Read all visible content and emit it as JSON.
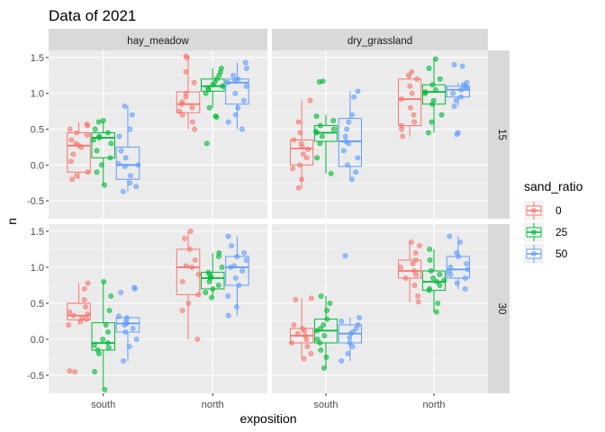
{
  "chart_data": {
    "type": "boxplot",
    "title": "Data of 2021",
    "xlabel": "exposition",
    "ylabel": "n",
    "ylim": [
      -0.75,
      1.6
    ],
    "yticks": [
      -0.5,
      0.0,
      0.5,
      1.0,
      1.5
    ],
    "ytick_labels": [
      "-0.5",
      "0.0",
      "0.5",
      "1.0",
      "1.5"
    ],
    "categories": [
      "south",
      "north"
    ],
    "facet_cols": [
      "hay_meadow",
      "dry_grassland"
    ],
    "facet_rows": [
      "15",
      "30"
    ],
    "legend": {
      "title": "sand_ratio",
      "position": "right",
      "entries": [
        {
          "label": "0",
          "color": "#F8766D"
        },
        {
          "label": "25",
          "color": "#00BA38"
        },
        {
          "label": "50",
          "color": "#619CFF"
        }
      ]
    },
    "grid": true,
    "panels": [
      {
        "col": "hay_meadow",
        "row": "15",
        "groups": [
          {
            "category": "south",
            "series": "0",
            "q1": -0.1,
            "median": 0.27,
            "q3": 0.45,
            "whisker_low": -0.2,
            "whisker_high": 0.6,
            "points": [
              0.57,
              0.55,
              0.5,
              0.45,
              0.42,
              0.35,
              0.3,
              0.27,
              0.25,
              0.15,
              0.05,
              -0.1,
              -0.15,
              -0.2
            ]
          },
          {
            "category": "south",
            "series": "25",
            "q1": 0.1,
            "median": 0.38,
            "q3": 0.45,
            "whisker_low": -0.28,
            "whisker_high": 0.62,
            "points": [
              0.62,
              0.6,
              0.5,
              0.45,
              0.4,
              0.38,
              0.35,
              0.3,
              0.2,
              0.1,
              0.0,
              -0.1,
              -0.28
            ]
          },
          {
            "category": "south",
            "series": "50",
            "q1": -0.2,
            "median": 0.0,
            "q3": 0.25,
            "whisker_low": -0.37,
            "whisker_high": 0.82,
            "points": [
              0.82,
              0.7,
              0.5,
              0.4,
              0.2,
              0.1,
              0.02,
              0.0,
              -0.02,
              -0.15,
              -0.25,
              -0.3,
              -0.37
            ]
          },
          {
            "category": "north",
            "series": "0",
            "q1": 0.73,
            "median": 0.85,
            "q3": 1.02,
            "whisker_low": 0.5,
            "whisker_high": 1.52,
            "points": [
              1.52,
              1.5,
              1.3,
              1.15,
              1.0,
              0.95,
              0.88,
              0.85,
              0.8,
              0.75,
              0.7,
              0.6,
              0.5
            ]
          },
          {
            "category": "north",
            "series": "25",
            "q1": 1.03,
            "median": 1.1,
            "q3": 1.2,
            "whisker_low": 0.8,
            "whisker_high": 1.35,
            "points": [
              1.35,
              1.3,
              1.25,
              1.2,
              1.15,
              1.12,
              1.1,
              1.08,
              1.05,
              1.0,
              0.8,
              0.68,
              0.67,
              0.3
            ]
          },
          {
            "category": "north",
            "series": "50",
            "q1": 0.85,
            "median": 1.15,
            "q3": 1.2,
            "whisker_low": 0.5,
            "whisker_high": 1.43,
            "points": [
              1.43,
              1.35,
              1.25,
              1.2,
              1.18,
              1.15,
              1.1,
              1.0,
              0.9,
              0.8,
              0.7,
              0.6,
              0.5
            ]
          }
        ]
      },
      {
        "col": "dry_grassland",
        "row": "15",
        "groups": [
          {
            "category": "south",
            "series": "0",
            "q1": 0.0,
            "median": 0.23,
            "q3": 0.35,
            "whisker_low": -0.32,
            "whisker_high": 0.9,
            "points": [
              0.9,
              0.6,
              0.45,
              0.35,
              0.3,
              0.25,
              0.22,
              0.15,
              0.1,
              0.0,
              -0.05,
              -0.2,
              -0.32
            ]
          },
          {
            "category": "south",
            "series": "25",
            "q1": 0.33,
            "median": 0.45,
            "q3": 0.55,
            "whisker_low": -0.12,
            "whisker_high": 0.7,
            "points": [
              1.17,
              1.16,
              0.68,
              0.62,
              0.55,
              0.5,
              0.47,
              0.45,
              0.4,
              0.3,
              0.1,
              -0.12
            ]
          },
          {
            "category": "south",
            "series": "50",
            "q1": -0.02,
            "median": 0.33,
            "q3": 0.65,
            "whisker_low": -0.2,
            "whisker_high": 1.03,
            "points": [
              1.03,
              0.95,
              0.7,
              0.6,
              0.5,
              0.4,
              0.33,
              0.3,
              0.2,
              0.1,
              0.0,
              -0.1,
              -0.2
            ]
          },
          {
            "category": "north",
            "series": "0",
            "q1": 0.55,
            "median": 0.92,
            "q3": 1.2,
            "whisker_low": 0.4,
            "whisker_high": 1.3,
            "points": [
              1.3,
              1.25,
              1.2,
              1.1,
              1.0,
              0.92,
              0.8,
              0.7,
              0.6,
              0.55,
              0.5,
              0.4
            ]
          },
          {
            "category": "north",
            "series": "25",
            "q1": 0.85,
            "median": 1.02,
            "q3": 1.12,
            "whisker_low": 0.45,
            "whisker_high": 1.48,
            "points": [
              1.48,
              1.35,
              1.2,
              1.12,
              1.05,
              1.02,
              1.0,
              0.9,
              0.85,
              0.7,
              0.6,
              0.45
            ]
          },
          {
            "category": "north",
            "series": "50",
            "q1": 0.95,
            "median": 1.05,
            "q3": 1.1,
            "whisker_low": 0.82,
            "whisker_high": 1.15,
            "points": [
              1.4,
              1.38,
              1.15,
              1.12,
              1.1,
              1.08,
              1.05,
              1.0,
              0.95,
              0.9,
              0.82,
              0.45,
              0.43
            ]
          }
        ]
      },
      {
        "col": "hay_meadow",
        "row": "30",
        "groups": [
          {
            "category": "south",
            "series": "0",
            "q1": 0.27,
            "median": 0.33,
            "q3": 0.5,
            "whisker_low": 0.2,
            "whisker_high": 0.78,
            "points": [
              0.78,
              0.7,
              0.55,
              0.45,
              0.38,
              0.35,
              0.33,
              0.3,
              0.28,
              0.25,
              0.2,
              -0.44,
              -0.45
            ]
          },
          {
            "category": "south",
            "series": "25",
            "q1": -0.15,
            "median": -0.05,
            "q3": 0.23,
            "whisker_low": -0.7,
            "whisker_high": 0.8,
            "points": [
              0.8,
              0.6,
              0.4,
              0.2,
              0.1,
              0.0,
              -0.05,
              -0.08,
              -0.12,
              -0.15,
              -0.2,
              -0.45,
              -0.7
            ]
          },
          {
            "category": "south",
            "series": "50",
            "q1": 0.1,
            "median": 0.22,
            "q3": 0.3,
            "whisker_low": -0.3,
            "whisker_high": 0.32,
            "points": [
              0.72,
              0.7,
              0.65,
              0.32,
              0.3,
              0.25,
              0.22,
              0.2,
              0.15,
              0.1,
              0.0,
              -0.1,
              -0.3
            ]
          },
          {
            "category": "north",
            "series": "0",
            "q1": 0.62,
            "median": 1.0,
            "q3": 1.25,
            "whisker_low": 0.0,
            "whisker_high": 1.5,
            "points": [
              1.5,
              1.4,
              1.25,
              1.1,
              1.02,
              1.0,
              0.9,
              0.8,
              0.62,
              0.5,
              0.4,
              0.0
            ]
          },
          {
            "category": "north",
            "series": "25",
            "q1": 0.7,
            "median": 0.85,
            "q3": 0.93,
            "whisker_low": 0.58,
            "whisker_high": 1.2,
            "points": [
              1.2,
              1.15,
              1.0,
              0.93,
              0.9,
              0.87,
              0.85,
              0.8,
              0.75,
              0.7,
              0.65,
              0.58
            ]
          },
          {
            "category": "north",
            "series": "50",
            "q1": 0.75,
            "median": 1.0,
            "q3": 1.15,
            "whisker_low": 0.33,
            "whisker_high": 1.43,
            "points": [
              1.43,
              1.3,
              1.2,
              1.15,
              1.1,
              1.02,
              1.0,
              0.95,
              0.85,
              0.75,
              0.6,
              0.45,
              0.33
            ]
          }
        ]
      },
      {
        "col": "dry_grassland",
        "row": "30",
        "groups": [
          {
            "category": "south",
            "series": "0",
            "q1": -0.05,
            "median": 0.05,
            "q3": 0.15,
            "whisker_low": -0.27,
            "whisker_high": 0.57,
            "points": [
              0.57,
              0.55,
              0.2,
              0.15,
              0.12,
              0.08,
              0.05,
              0.0,
              -0.05,
              -0.1,
              -0.2,
              -0.27
            ]
          },
          {
            "category": "south",
            "series": "25",
            "q1": -0.05,
            "median": 0.12,
            "q3": 0.28,
            "whisker_low": -0.4,
            "whisker_high": 0.6,
            "points": [
              0.6,
              0.5,
              0.4,
              0.28,
              0.2,
              0.15,
              0.12,
              0.05,
              0.0,
              -0.05,
              -0.15,
              -0.25,
              -0.4
            ]
          },
          {
            "category": "south",
            "series": "50",
            "q1": -0.05,
            "median": 0.08,
            "q3": 0.2,
            "whisker_low": -0.3,
            "whisker_high": 0.3,
            "points": [
              1.16,
              0.3,
              0.25,
              0.2,
              0.15,
              0.1,
              0.08,
              0.02,
              -0.05,
              -0.1,
              -0.2,
              -0.3
            ]
          },
          {
            "category": "north",
            "series": "0",
            "q1": 0.85,
            "median": 0.95,
            "q3": 1.1,
            "whisker_low": 0.52,
            "whisker_high": 1.35,
            "points": [
              1.35,
              1.3,
              1.2,
              1.1,
              1.05,
              1.0,
              0.95,
              0.9,
              0.85,
              0.75,
              0.6,
              0.52
            ]
          },
          {
            "category": "north",
            "series": "25",
            "q1": 0.68,
            "median": 0.8,
            "q3": 0.95,
            "whisker_low": 0.38,
            "whisker_high": 1.25,
            "points": [
              1.25,
              1.1,
              0.95,
              0.9,
              0.85,
              0.82,
              0.8,
              0.75,
              0.7,
              0.68,
              0.5,
              0.38
            ]
          },
          {
            "category": "north",
            "series": "50",
            "q1": 0.85,
            "median": 0.97,
            "q3": 1.15,
            "whisker_low": 0.7,
            "whisker_high": 1.43,
            "points": [
              1.43,
              1.35,
              1.2,
              1.15,
              1.05,
              1.0,
              0.97,
              0.95,
              0.9,
              0.85,
              0.78,
              0.7
            ]
          }
        ]
      }
    ]
  }
}
